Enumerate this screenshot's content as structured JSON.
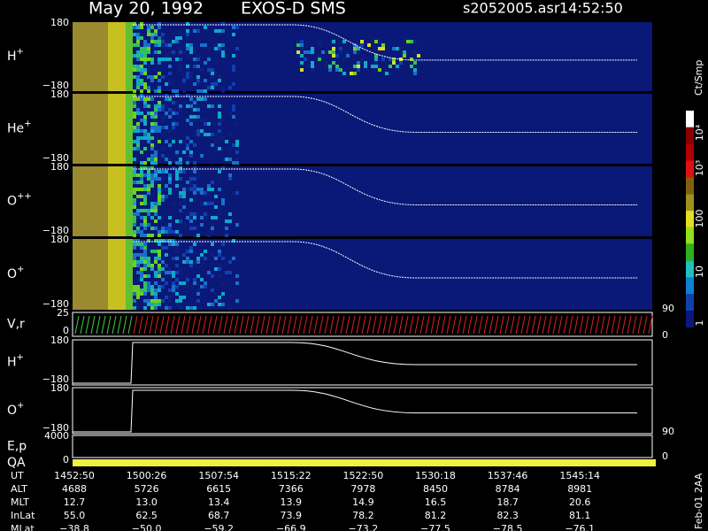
{
  "header": {
    "date": "May 20, 1992",
    "instrument": "EXOS-D SMS",
    "file": "s2052005.asr",
    "time": "14:52:50"
  },
  "panels": [
    {
      "base": "H",
      "charge": "+",
      "ticks": [
        "180",
        "−180"
      ]
    },
    {
      "base": "He",
      "charge": "+",
      "ticks": [
        "180",
        "−180"
      ]
    },
    {
      "base": "O",
      "charge": "++",
      "ticks": [
        "180",
        "−180"
      ]
    },
    {
      "base": "O",
      "charge": "+",
      "ticks": [
        "180",
        "−180"
      ]
    },
    {
      "base": "V,r",
      "ticks": [
        "25",
        "0"
      ],
      "right_ticks": [
        "90",
        "0"
      ]
    },
    {
      "base": "H",
      "charge": "+",
      "ticks": [
        "180",
        "−180"
      ]
    },
    {
      "base": "O",
      "charge": "+",
      "ticks": [
        "180",
        "−180"
      ]
    },
    {
      "base": "E,p",
      "ticks": [
        "4000"
      ],
      "right_ticks": [
        "90",
        "0"
      ]
    },
    {
      "base": "QA",
      "ticks": [
        "0"
      ]
    }
  ],
  "colorbar": {
    "unit": "Ct/Smp",
    "labels": [
      "10⁴",
      "10³",
      "100",
      "10",
      "1"
    ]
  },
  "ephemeris": {
    "labels": [
      "UT",
      "ALT",
      "MLT",
      "InLat",
      "MLat"
    ],
    "rows": [
      [
        "1452:50",
        "1500:26",
        "1507:54",
        "1515:22",
        "1522:50",
        "1530:18",
        "1537:46",
        "1545:14"
      ],
      [
        "4688",
        "5726",
        "6615",
        "7366",
        "7978",
        "8450",
        "8784",
        "8981"
      ],
      [
        "12.7",
        "13.0",
        "13.4",
        "13.9",
        "14.9",
        "16.5",
        "18.7",
        "20.6"
      ],
      [
        "55.0",
        "62.5",
        "68.7",
        "73.9",
        "78.2",
        "81.2",
        "82.3",
        "81.1"
      ],
      [
        "−38.8",
        "−50.0",
        "−59.2",
        "−66.9",
        "−73.2",
        "−77.5",
        "−78.5",
        "−76.1"
      ]
    ]
  },
  "footer": "Feb-01 2AA"
}
